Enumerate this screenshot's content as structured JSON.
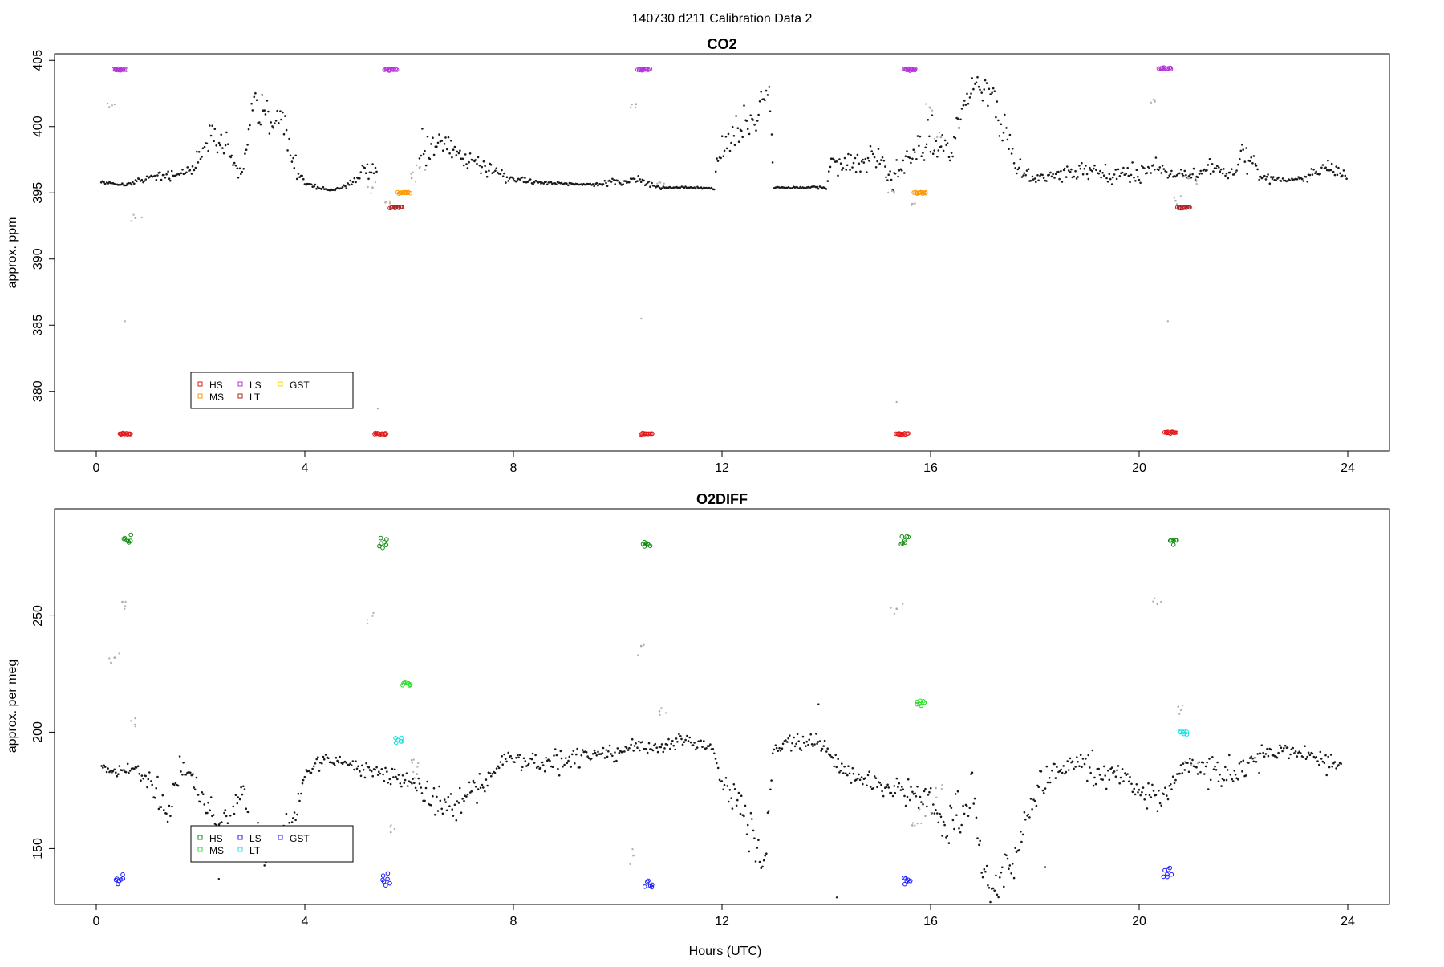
{
  "figure": {
    "title": "140730   d211   Calibration Data 2"
  },
  "chart_data": [
    {
      "type": "scatter",
      "title": "CO2",
      "xlabel": "",
      "ylabel": "approx. ppm",
      "xlim": [
        -0.8,
        24.8
      ],
      "ylim": [
        375.5,
        405.5
      ],
      "xticks": [
        0,
        4,
        8,
        12,
        16,
        20,
        24
      ],
      "yticks": [
        380,
        385,
        390,
        395,
        400,
        405
      ],
      "grid": false,
      "legend": {
        "placement": "bottom-left",
        "columns": [
          [
            "HS",
            "MS"
          ],
          [
            "LS",
            "LT"
          ],
          [
            "GST"
          ]
        ]
      },
      "colors": {
        "HS": "#e41a1c",
        "MS": "#ff9900",
        "LS": "#b633d9",
        "LT": "#b22222",
        "GST": "#f5d800"
      },
      "series": [
        {
          "name": "HS",
          "x": [
            0.55,
            5.45,
            10.55,
            15.45,
            20.6
          ],
          "y": [
            376.8,
            376.8,
            376.8,
            376.8,
            376.9
          ],
          "spread": 0.1
        },
        {
          "name": "MS",
          "x": [
            5.9,
            15.8
          ],
          "y": [
            395.0,
            395.0
          ],
          "spread": 0.1
        },
        {
          "name": "LS",
          "x": [
            0.45,
            5.65,
            10.5,
            15.6,
            20.5
          ],
          "y": [
            404.3,
            404.3,
            404.3,
            404.3,
            404.4
          ],
          "spread": 0.1
        },
        {
          "name": "LT",
          "x": [
            5.75,
            20.85
          ],
          "y": [
            393.9,
            393.9
          ],
          "spread": 0.1
        },
        {
          "name": "GST",
          "x": [],
          "y": [],
          "spread": 0
        }
      ],
      "ambient": {
        "x": [
          0.1,
          0.55,
          0.7,
          1.0,
          1.4,
          1.8,
          2.1,
          2.4,
          2.6,
          2.8,
          3.0,
          3.3,
          3.55,
          3.8,
          4.0,
          4.5,
          4.8,
          5.1,
          5.4,
          6.2,
          6.6,
          7.0,
          7.5,
          8.0,
          8.5,
          9.0,
          9.5,
          10.0,
          10.4,
          10.8,
          11.4,
          11.85,
          11.9,
          12.1,
          12.4,
          12.7,
          12.9,
          13.0,
          13.5,
          14.0,
          14.1,
          14.5,
          15.0,
          15.2,
          15.35,
          16.0,
          16.4,
          16.7,
          16.85,
          17.1,
          17.4,
          17.6,
          18.0,
          18.5,
          19.0,
          19.5,
          20.0,
          20.3,
          20.4,
          21.0,
          21.4,
          21.7,
          22.0,
          22.4,
          22.8,
          23.2,
          23.6,
          24.0
        ],
        "y": [
          395.8,
          395.6,
          395.8,
          396.1,
          396.4,
          396.6,
          398.8,
          399.4,
          397.6,
          396.2,
          401.2,
          400.6,
          401.0,
          397.0,
          395.7,
          395.2,
          395.5,
          396.6,
          396.4,
          398.2,
          398.8,
          397.6,
          397.0,
          396.0,
          395.8,
          395.7,
          395.6,
          395.8,
          396.0,
          395.4,
          395.4,
          395.3,
          397.6,
          399.2,
          399.6,
          401.2,
          403.0,
          395.4,
          395.4,
          395.4,
          397.4,
          397.0,
          397.6,
          395.8,
          397.0,
          399.0,
          397.6,
          402.6,
          403.4,
          402.4,
          400.2,
          397.0,
          396.0,
          396.4,
          396.6,
          396.2,
          396.6,
          397.0,
          396.8,
          396.2,
          397.2,
          396.2,
          397.8,
          396.2,
          395.9,
          396.2,
          397.0,
          396.2
        ],
        "spread": [
          0.1,
          0.1,
          0.2,
          0.3,
          0.6,
          0.6,
          1.2,
          1.2,
          1.0,
          0.8,
          1.8,
          1.8,
          1.6,
          1.2,
          0.3,
          0.1,
          0.3,
          0.6,
          0.6,
          1.2,
          1.2,
          1.0,
          0.8,
          0.4,
          0.2,
          0.1,
          0.1,
          0.3,
          0.3,
          0.1,
          0.1,
          0.1,
          1.2,
          1.6,
          1.6,
          1.6,
          1.2,
          0.1,
          0.1,
          0.1,
          1.0,
          1.0,
          1.0,
          0.8,
          1.2,
          2.0,
          1.8,
          1.4,
          1.4,
          1.4,
          1.6,
          1.0,
          0.4,
          0.5,
          0.8,
          0.6,
          0.8,
          0.6,
          0.6,
          0.4,
          0.8,
          0.5,
          1.0,
          0.5,
          0.2,
          0.3,
          0.6,
          0.4
        ]
      },
      "transitions": {
        "x": [
          0.3,
          0.75,
          5.3,
          5.55,
          6.05,
          6.2,
          10.35,
          10.8,
          15.3,
          15.7,
          16.0,
          16.2,
          20.3,
          20.7,
          20.95,
          21.1
        ],
        "y": [
          401.6,
          393.1,
          395.4,
          394.3,
          396.1,
          396.9,
          401.7,
          395.8,
          395.0,
          394.2,
          401.4,
          399.2,
          401.9,
          394.4,
          396.1,
          395.9
        ]
      },
      "outliers": {
        "x": [
          0.55,
          5.4,
          10.45,
          15.35,
          20.55
        ],
        "y": [
          385.3,
          378.7,
          385.5,
          379.2,
          385.3
        ]
      }
    },
    {
      "type": "scatter",
      "title": "O2DIFF",
      "xlabel": "Hours (UTC)",
      "ylabel": "approx. per meg",
      "xlim": [
        -0.8,
        24.8
      ],
      "ylim": [
        126,
        296
      ],
      "xticks": [
        0,
        4,
        8,
        12,
        16,
        20,
        24
      ],
      "yticks": [
        150,
        200,
        250
      ],
      "grid": false,
      "legend": {
        "placement": "bottom-left",
        "columns": [
          [
            "HS",
            "MS"
          ],
          [
            "LS",
            "LT"
          ],
          [
            "GST"
          ]
        ]
      },
      "colors": {
        "HS": "#0b8a0b",
        "MS": "#22dd22",
        "LS": "#1a1aff",
        "LT": "#11e0e0",
        "GST": "#1a1aff"
      },
      "series": [
        {
          "name": "HS",
          "x": [
            0.6,
            5.5,
            10.55,
            15.5,
            20.65
          ],
          "y": [
            283,
            281,
            280,
            283,
            282
          ],
          "spread": 4
        },
        {
          "name": "MS",
          "x": [
            5.95,
            15.8
          ],
          "y": [
            221,
            213
          ],
          "spread": 3
        },
        {
          "name": "LS",
          "x": [
            0.45,
            5.55,
            10.6,
            15.55,
            20.55
          ],
          "y": [
            137,
            137,
            135,
            136,
            140
          ],
          "spread": 4
        },
        {
          "name": "LT",
          "x": [
            5.8,
            20.85
          ],
          "y": [
            197,
            200
          ],
          "spread": 3
        },
        {
          "name": "GST",
          "x": [],
          "y": [],
          "spread": 0
        }
      ],
      "ambient": {
        "x": [
          0.1,
          0.3,
          0.75,
          1.0,
          1.2,
          1.4,
          1.6,
          1.8,
          2.0,
          2.3,
          2.6,
          2.8,
          3.0,
          3.3,
          3.6,
          3.8,
          4.0,
          4.4,
          4.8,
          5.1,
          5.4,
          6.1,
          6.4,
          6.7,
          7.0,
          7.4,
          7.8,
          8.2,
          8.6,
          9.0,
          9.5,
          10.0,
          10.4,
          10.8,
          11.2,
          11.6,
          11.85,
          12.0,
          12.3,
          12.6,
          12.8,
          13.0,
          13.4,
          13.8,
          14.0,
          14.3,
          14.7,
          15.0,
          15.3,
          16.0,
          16.3,
          16.6,
          16.8,
          17.0,
          17.3,
          17.6,
          17.8,
          18.1,
          18.5,
          18.9,
          19.3,
          19.6,
          20.0,
          20.4,
          20.9,
          21.3,
          21.6,
          21.9,
          22.3,
          22.7,
          23.1,
          23.5,
          23.9
        ],
        "y": [
          186,
          183,
          184,
          180,
          172,
          166,
          184,
          183,
          170,
          163,
          163,
          177,
          158,
          145,
          153,
          163,
          183,
          188,
          187,
          184,
          182,
          180,
          170,
          167,
          172,
          178,
          188,
          188,
          186,
          188,
          190,
          191,
          194,
          193,
          197,
          195,
          192,
          180,
          168,
          158,
          145,
          193,
          196,
          195,
          193,
          183,
          180,
          176,
          177,
          170,
          157,
          165,
          175,
          135,
          133,
          145,
          159,
          178,
          185,
          187,
          180,
          184,
          177,
          170,
          187,
          184,
          182,
          184,
          189,
          193,
          192,
          186,
          188
        ],
        "spread": [
          2,
          3,
          3,
          4,
          8,
          8,
          4,
          4,
          8,
          7,
          8,
          7,
          8,
          8,
          9,
          8,
          4,
          3,
          3,
          4,
          4,
          4,
          8,
          8,
          8,
          6,
          4,
          4,
          5,
          5,
          4,
          4,
          4,
          3,
          3,
          3,
          3,
          6,
          8,
          10,
          10,
          4,
          4,
          4,
          4,
          5,
          5,
          6,
          5,
          10,
          12,
          12,
          10,
          8,
          8,
          8,
          8,
          8,
          5,
          5,
          8,
          6,
          6,
          5,
          4,
          6,
          8,
          6,
          5,
          4,
          4,
          5,
          4
        ]
      },
      "transitions": {
        "x": [
          0.35,
          0.5,
          0.75,
          5.3,
          5.65,
          6.05,
          6.15,
          10.3,
          10.45,
          10.8,
          15.35,
          15.65,
          15.9,
          16.1,
          20.35,
          20.75,
          21.0
        ],
        "y": [
          232,
          256,
          206,
          250,
          157,
          188,
          182,
          147,
          237,
          209,
          253,
          160,
          164,
          176,
          255,
          211,
          186
        ]
      },
      "outliers": {
        "x": [
          2.35,
          13.85,
          14.2,
          18.2
        ],
        "y": [
          137,
          212,
          129,
          142
        ]
      }
    }
  ]
}
